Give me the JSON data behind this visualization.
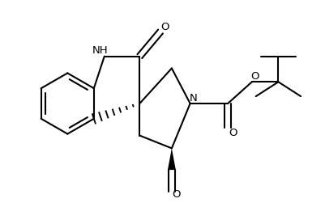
{
  "background_color": "#ffffff",
  "line_color": "#000000",
  "line_width": 1.5,
  "fig_width": 4.02,
  "fig_height": 2.56,
  "dpi": 100,
  "xlim": [
    0,
    4.02
  ],
  "ylim": [
    0,
    2.56
  ]
}
